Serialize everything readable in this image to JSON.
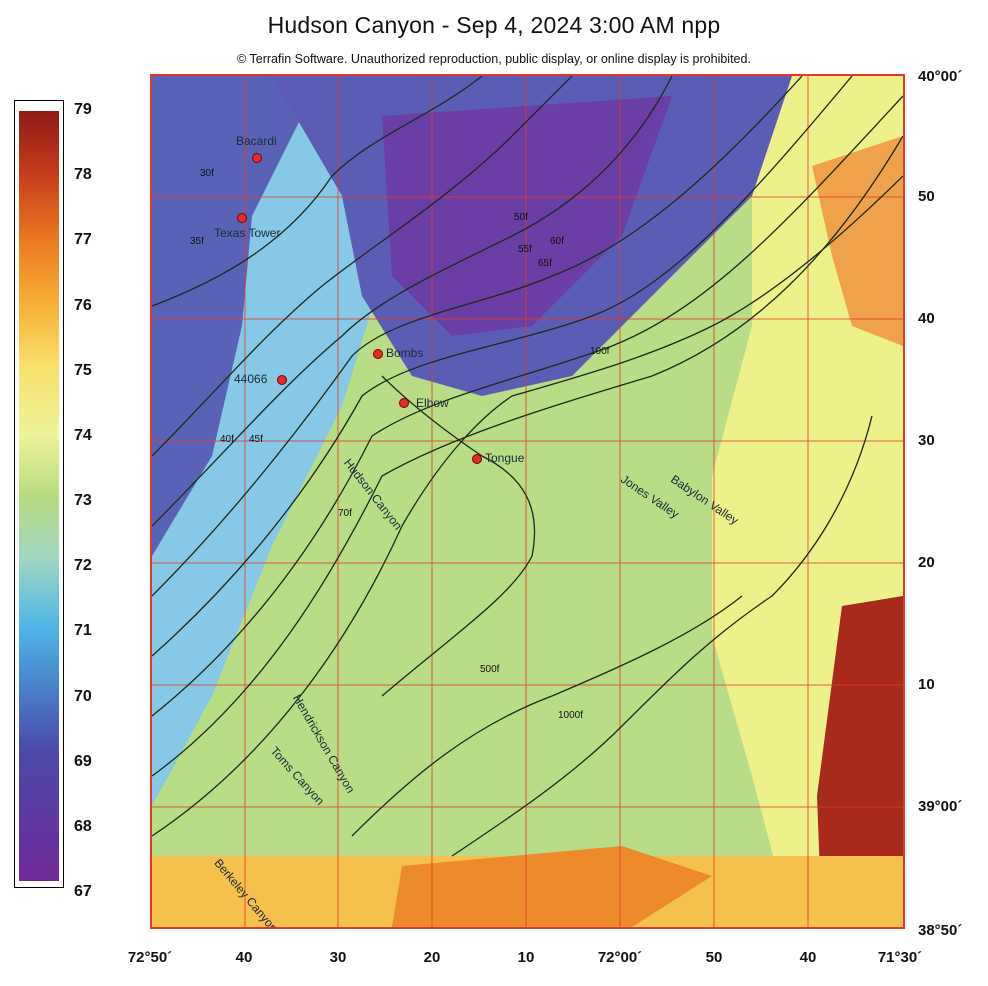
{
  "title": "Hudson Canyon - Sep 4, 2024 3:00 AM npp",
  "copyright": "© Terrafin Software.  Unauthorized reproduction, public display, or online display is prohibited.",
  "legend": {
    "ticks": [
      "79",
      "78",
      "77",
      "76",
      "75",
      "74",
      "73",
      "72",
      "71",
      "70",
      "69",
      "68",
      "67"
    ],
    "min": 67,
    "max": 79
  },
  "latitude_labels": [
    "40°00´",
    "50",
    "40",
    "30",
    "20",
    "10",
    "39°00´",
    "38°50´"
  ],
  "longitude_labels": [
    "72°50´",
    "40",
    "30",
    "20",
    "10",
    "72°00´",
    "50",
    "40",
    "71°30´"
  ],
  "stations": [
    {
      "name": "Bacardi"
    },
    {
      "name": "Texas Tower"
    },
    {
      "name": "44066"
    },
    {
      "name": "Bombs"
    },
    {
      "name": "Elbow"
    },
    {
      "name": "Tongue"
    }
  ],
  "features": [
    {
      "name": "Hudson Canyon"
    },
    {
      "name": "Jones Valley"
    },
    {
      "name": "Babylon Valley"
    },
    {
      "name": "Hendrickson Canyon"
    },
    {
      "name": "Toms Canyon"
    },
    {
      "name": "Berkeley Canyon"
    }
  ],
  "contour_labels": [
    "30f",
    "35f",
    "40f",
    "45f",
    "50f",
    "55f",
    "60f",
    "65f",
    "70f",
    "100f",
    "500f",
    "1000f"
  ]
}
